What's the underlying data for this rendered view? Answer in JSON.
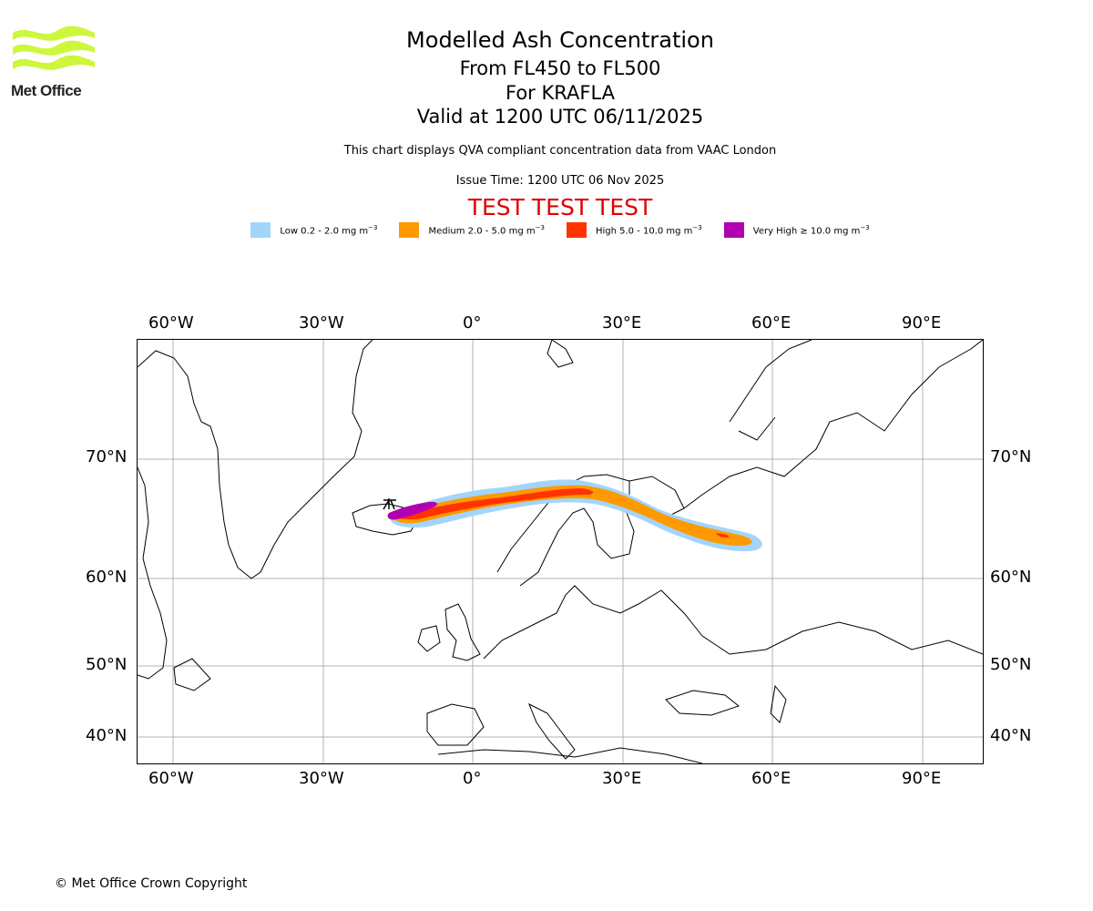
{
  "logo": {
    "name": "Met Office"
  },
  "titles": {
    "main": "Modelled Ash Concentration",
    "levels": "From FL450 to FL500",
    "volcano": "For KRAFLA",
    "valid": "Valid at 1200 UTC 06/11/2025",
    "description": "This chart displays QVA compliant concentration data from VAAC London",
    "issue": "Issue Time: 1200 UTC 06 Nov 2025",
    "test": "TEST TEST TEST"
  },
  "legend": [
    {
      "label": "Low 0.2 - 2.0 mg m",
      "color": "#a3d5fb"
    },
    {
      "label": "Medium 2.0 - 5.0 mg m",
      "color": "#ff9900"
    },
    {
      "label": "High 5.0 - 10.0 mg m",
      "color": "#ff3300"
    },
    {
      "label": "Very High  ≥  10.0 mg m",
      "color": "#b000b0"
    }
  ],
  "legend_exponent": "−3",
  "axes": {
    "lon_labels": [
      "60°W",
      "30°W",
      "0°",
      "30°E",
      "60°E",
      "90°E"
    ],
    "lat_labels": [
      "70°N",
      "60°N",
      "50°N",
      "40°N"
    ]
  },
  "colors": {
    "logo": "#cdf73a",
    "test_text": "#e00000",
    "grid": "#b0b0b0"
  },
  "copyright": "© Met Office Crown Copyright"
}
